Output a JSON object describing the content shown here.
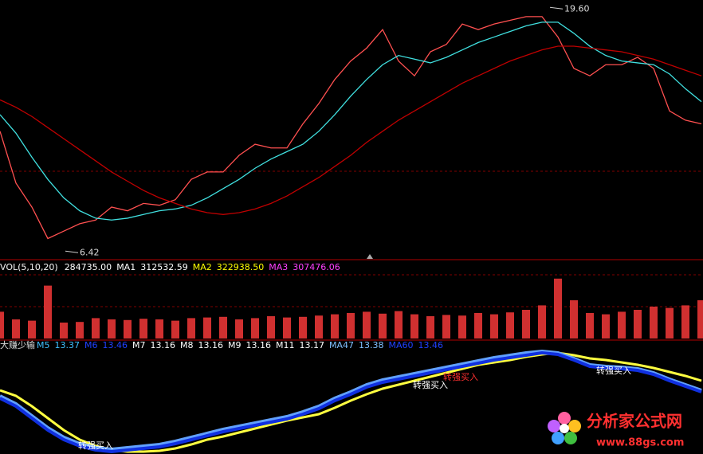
{
  "chart_data": [
    {
      "type": "line",
      "ylim": [
        6,
        20
      ],
      "series": [
        {
          "color": "#ff5050",
          "values": [
            12.9,
            10.1,
            8.8,
            7.1,
            7.5,
            7.9,
            8.1,
            8.8,
            8.6,
            9.0,
            8.9,
            9.2,
            10.3,
            10.7,
            10.7,
            11.6,
            12.2,
            12.0,
            12.0,
            13.3,
            14.4,
            15.7,
            16.7,
            17.4,
            18.4,
            16.7,
            15.9,
            17.2,
            17.6,
            18.7,
            18.4,
            18.7,
            18.9,
            19.1,
            19.1,
            18.0,
            16.3,
            15.9,
            16.5,
            16.5,
            16.9,
            16.3,
            14.0,
            13.5,
            13.3
          ]
        },
        {
          "color": "#40e0e0",
          "values": [
            13.8,
            12.8,
            11.5,
            10.3,
            9.3,
            8.6,
            8.2,
            8.1,
            8.2,
            8.4,
            8.6,
            8.7,
            8.9,
            9.3,
            9.8,
            10.3,
            10.9,
            11.4,
            11.8,
            12.2,
            12.9,
            13.8,
            14.8,
            15.7,
            16.5,
            17.0,
            16.8,
            16.6,
            16.9,
            17.3,
            17.7,
            18.0,
            18.3,
            18.6,
            18.8,
            18.8,
            18.2,
            17.5,
            17.0,
            16.7,
            16.6,
            16.5,
            16.0,
            15.2,
            14.5
          ]
        },
        {
          "color": "#c00000",
          "values": [
            14.6,
            14.2,
            13.7,
            13.1,
            12.5,
            11.9,
            11.3,
            10.7,
            10.2,
            9.7,
            9.3,
            9.0,
            8.7,
            8.5,
            8.4,
            8.5,
            8.7,
            9.0,
            9.4,
            9.9,
            10.4,
            11.0,
            11.6,
            12.3,
            12.9,
            13.5,
            14.0,
            14.5,
            15.0,
            15.5,
            15.9,
            16.3,
            16.7,
            17.0,
            17.3,
            17.5,
            17.5,
            17.4,
            17.3,
            17.2,
            17.0,
            16.8,
            16.5,
            16.2,
            15.9
          ]
        }
      ],
      "annotations": [
        {
          "text": "19.60",
          "value": 19.6
        },
        {
          "text": "6.42",
          "value": 6.42
        }
      ]
    },
    {
      "type": "bar",
      "title": "VOL(5,10,20)",
      "ylim": [
        0,
        1000000
      ],
      "color": "#d03030",
      "readouts": [
        {
          "text": "284735.00",
          "color": "#ffffff"
        },
        {
          "text": "MA1",
          "color": "#ffffff"
        },
        {
          "text": "312532.59",
          "color": "#ffffff"
        },
        {
          "text": "MA2",
          "color": "#ffff00"
        },
        {
          "text": "322938.50",
          "color": "#ffff00"
        },
        {
          "text": "MA3",
          "color": "#ff40ff"
        },
        {
          "text": "307476.06",
          "color": "#ff40ff"
        }
      ],
      "values": [
        420000,
        300000,
        280000,
        830000,
        250000,
        260000,
        320000,
        300000,
        290000,
        310000,
        300000,
        280000,
        320000,
        330000,
        340000,
        300000,
        320000,
        350000,
        330000,
        340000,
        360000,
        380000,
        400000,
        420000,
        390000,
        430000,
        380000,
        350000,
        370000,
        360000,
        400000,
        380000,
        410000,
        450000,
        520000,
        940000,
        600000,
        400000,
        380000,
        420000,
        450000,
        500000,
        480000,
        520000,
        600000
      ]
    },
    {
      "type": "line",
      "title": "大赚少输",
      "ylim": [
        7,
        20
      ],
      "readouts": [
        {
          "text": "M5",
          "color": "#40c0ff"
        },
        {
          "text": "13.37",
          "color": "#40c0ff"
        },
        {
          "text": "M6",
          "color": "#2040ff"
        },
        {
          "text": "13.46",
          "color": "#2040ff"
        },
        {
          "text": "M7",
          "color": "#ffffff"
        },
        {
          "text": "13.16",
          "color": "#ffffff"
        },
        {
          "text": "M8",
          "color": "#ffffff"
        },
        {
          "text": "13.16",
          "color": "#ffffff"
        },
        {
          "text": "M9",
          "color": "#ffffff"
        },
        {
          "text": "13.16",
          "color": "#ffffff"
        },
        {
          "text": "M11",
          "color": "#ffffff"
        },
        {
          "text": "13.17",
          "color": "#ffffff"
        },
        {
          "text": "MA47",
          "color": "#80c0ff"
        },
        {
          "text": "13.38",
          "color": "#80c0ff"
        },
        {
          "text": "MA60",
          "color": "#2040ff"
        },
        {
          "text": "13.46",
          "color": "#2040ff"
        }
      ],
      "series": [
        {
          "color": "#ffff40",
          "values": [
            15.0,
            14.3,
            13.0,
            11.5,
            10.0,
            8.8,
            8.0,
            7.5,
            7.3,
            7.3,
            7.4,
            7.7,
            8.2,
            8.8,
            9.2,
            9.7,
            10.2,
            10.7,
            11.2,
            11.6,
            12.0,
            12.8,
            13.7,
            14.5,
            15.2,
            15.7,
            16.2,
            16.7,
            17.2,
            17.7,
            18.2,
            18.5,
            18.8,
            19.2,
            19.5,
            19.7,
            19.4,
            19.0,
            18.8,
            18.5,
            18.2,
            17.8,
            17.3,
            16.8,
            16.2
          ]
        },
        {
          "color": "#60a0ff",
          "values": [
            14.3,
            13.3,
            11.8,
            10.3,
            9.1,
            8.3,
            7.8,
            7.6,
            7.8,
            8.0,
            8.2,
            8.6,
            9.1,
            9.6,
            10.1,
            10.5,
            10.9,
            11.3,
            11.7,
            12.3,
            13.0,
            14.0,
            14.8,
            15.7,
            16.3,
            16.7,
            17.1,
            17.5,
            17.9,
            18.3,
            18.7,
            19.1,
            19.4,
            19.7,
            19.9,
            19.7,
            19.0,
            18.2,
            18.0,
            17.9,
            17.7,
            17.2,
            16.4,
            15.7,
            15.0
          ]
        },
        {
          "color": "#1030e0",
          "values": [
            14.0,
            13.0,
            11.5,
            10.0,
            8.8,
            8.0,
            7.5,
            7.3,
            7.5,
            7.7,
            7.9,
            8.3,
            8.8,
            9.3,
            9.8,
            10.2,
            10.6,
            11.0,
            11.4,
            12.0,
            12.7,
            13.7,
            14.5,
            15.4,
            16.0,
            16.4,
            16.8,
            17.2,
            17.6,
            18.0,
            18.4,
            18.8,
            19.1,
            19.4,
            19.7,
            19.5,
            18.8,
            18.0,
            17.8,
            17.7,
            17.5,
            17.0,
            16.2,
            15.5,
            14.8
          ]
        }
      ],
      "annotations": [
        {
          "text": "转强买入",
          "color": "#ffffff"
        },
        {
          "text": "转强买入",
          "color": "#ffffff"
        },
        {
          "text": "转强买入",
          "color": "#ff3030"
        },
        {
          "text": "转强买入",
          "color": "#ffffff"
        }
      ]
    },
    {
      "watermark": {
        "title": "分析家公式网",
        "url": "www.88gs.com"
      }
    }
  ]
}
